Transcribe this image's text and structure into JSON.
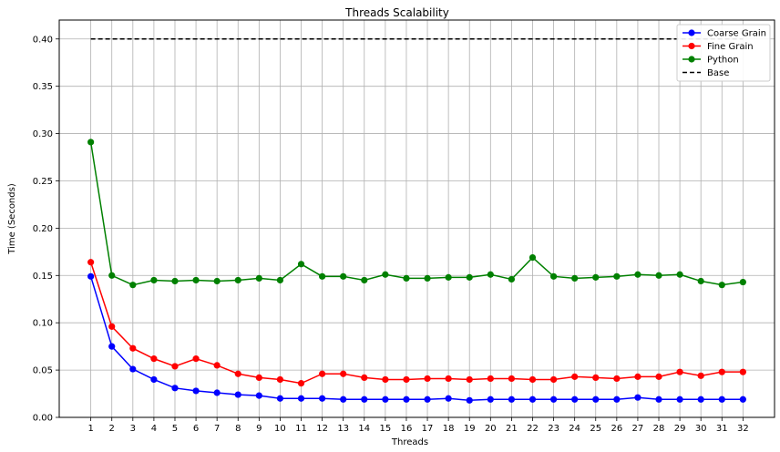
{
  "chart_data": {
    "type": "line",
    "title": "Threads Scalability",
    "xlabel": "Threads",
    "ylabel": "Time (Seconds)",
    "x": [
      1,
      2,
      3,
      4,
      5,
      6,
      7,
      8,
      9,
      10,
      11,
      12,
      13,
      14,
      15,
      16,
      17,
      18,
      19,
      20,
      21,
      22,
      23,
      24,
      25,
      26,
      27,
      28,
      29,
      30,
      31,
      32
    ],
    "xlim": [
      -0.5,
      33.5
    ],
    "ylim": [
      0.0,
      0.42
    ],
    "yticks": [
      0.0,
      0.05,
      0.1,
      0.15,
      0.2,
      0.25,
      0.3,
      0.35,
      0.4
    ],
    "ytick_labels": [
      "0.00",
      "0.05",
      "0.10",
      "0.15",
      "0.20",
      "0.25",
      "0.30",
      "0.35",
      "0.40"
    ],
    "grid": true,
    "legend_position": "top-right",
    "series": [
      {
        "name": "Coarse Grain",
        "color": "#0000ff",
        "style": "solid",
        "marker": "circle",
        "values": [
          0.149,
          0.075,
          0.051,
          0.04,
          0.031,
          0.028,
          0.026,
          0.024,
          0.023,
          0.02,
          0.02,
          0.02,
          0.019,
          0.019,
          0.019,
          0.019,
          0.019,
          0.02,
          0.018,
          0.019,
          0.019,
          0.019,
          0.019,
          0.019,
          0.019,
          0.019,
          0.021,
          0.019,
          0.019,
          0.019,
          0.019,
          0.019
        ]
      },
      {
        "name": "Fine Grain",
        "color": "#ff0000",
        "style": "solid",
        "marker": "circle",
        "values": [
          0.164,
          0.096,
          0.073,
          0.062,
          0.054,
          0.062,
          0.055,
          0.046,
          0.042,
          0.04,
          0.036,
          0.046,
          0.046,
          0.042,
          0.04,
          0.04,
          0.041,
          0.041,
          0.04,
          0.041,
          0.041,
          0.04,
          0.04,
          0.043,
          0.042,
          0.041,
          0.043,
          0.043,
          0.048,
          0.044,
          0.048,
          0.048
        ]
      },
      {
        "name": "Python",
        "color": "#008000",
        "style": "solid",
        "marker": "circle",
        "values": [
          0.291,
          0.15,
          0.14,
          0.145,
          0.144,
          0.145,
          0.144,
          0.145,
          0.147,
          0.145,
          0.162,
          0.149,
          0.149,
          0.145,
          0.151,
          0.147,
          0.147,
          0.148,
          0.148,
          0.151,
          0.146,
          0.169,
          0.149,
          0.147,
          0.148,
          0.149,
          0.151,
          0.15,
          0.151,
          0.144,
          0.14,
          0.143
        ]
      },
      {
        "name": "Base",
        "color": "#000000",
        "style": "dashed",
        "marker": "none",
        "values": [
          0.4,
          0.4,
          0.4,
          0.4,
          0.4,
          0.4,
          0.4,
          0.4,
          0.4,
          0.4,
          0.4,
          0.4,
          0.4,
          0.4,
          0.4,
          0.4,
          0.4,
          0.4,
          0.4,
          0.4,
          0.4,
          0.4,
          0.4,
          0.4,
          0.4,
          0.4,
          0.4,
          0.4,
          0.4,
          0.4,
          0.4,
          0.4
        ]
      }
    ]
  }
}
